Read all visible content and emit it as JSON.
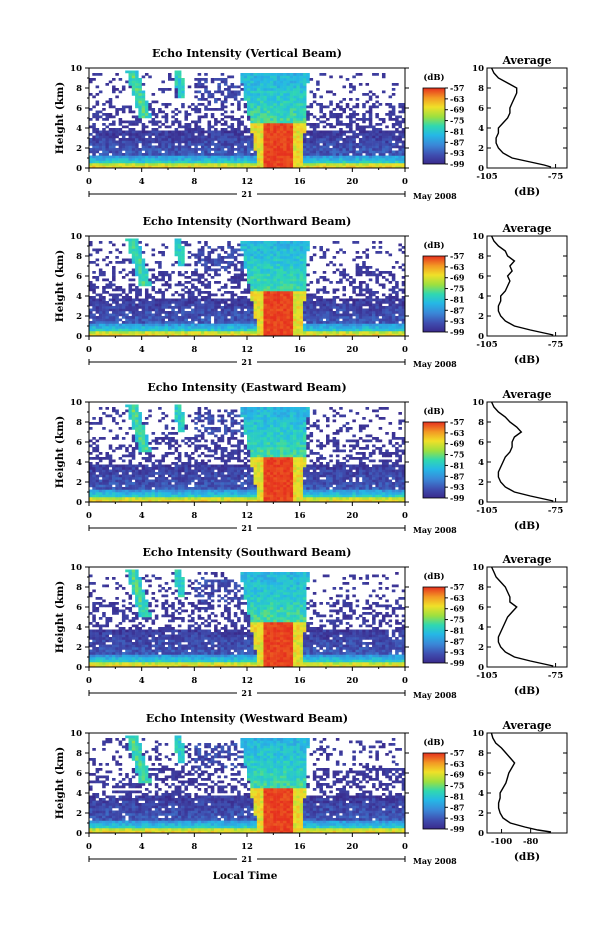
{
  "figure": {
    "xlabel": "Local Time",
    "day_label": "21",
    "month_label": "May 2008",
    "colorbar_unit": "(dB)",
    "avg_title": "Average",
    "avg_xlabel": "(dB)"
  },
  "chart_data": [
    {
      "type": "heatmap",
      "title": "Echo Intensity (Vertical Beam)",
      "ylabel": "Height (km)",
      "xlabel": "Local Time",
      "x_ticks": [
        "0",
        "4",
        "8",
        "12",
        "16",
        "20",
        "0"
      ],
      "xlim": [
        0,
        24
      ],
      "y_ticks": [
        "0",
        "2",
        "4",
        "6",
        "8",
        "10"
      ],
      "ylim": [
        0,
        10
      ],
      "colorbar": {
        "label": "(dB)",
        "ticks": [
          "-57",
          "-63",
          "-69",
          "-75",
          "-81",
          "-87",
          "-93",
          "-99"
        ],
        "range": [
          -99,
          -57
        ]
      },
      "average_profile": {
        "title": "Average",
        "xlabel": "(dB)",
        "xlim": [
          -105,
          -70
        ],
        "x_ticks": [
          "-105",
          "-75"
        ],
        "height_km": [
          0.1,
          0.3,
          0.6,
          1.0,
          1.5,
          2.0,
          2.5,
          3.0,
          3.5,
          4.0,
          4.5,
          5.0,
          5.5,
          6.0,
          6.5,
          7.0,
          7.5,
          8.0,
          8.5,
          9.0,
          9.5,
          10.0
        ],
        "db": [
          -77,
          -80,
          -86,
          -94,
          -98,
          -100,
          -101,
          -101,
          -100,
          -100,
          -98,
          -96,
          -95,
          -95,
          -94,
          -93,
          -92,
          -92,
          -96,
          -100,
          -102,
          -103
        ]
      }
    },
    {
      "type": "heatmap",
      "title": "Echo Intensity (Northward Beam)",
      "ylabel": "Height (km)",
      "xlabel": "Local Time",
      "x_ticks": [
        "0",
        "4",
        "8",
        "12",
        "16",
        "20",
        "0"
      ],
      "xlim": [
        0,
        24
      ],
      "y_ticks": [
        "0",
        "2",
        "4",
        "6",
        "8",
        "10"
      ],
      "ylim": [
        0,
        10
      ],
      "colorbar": {
        "label": "(dB)",
        "ticks": [
          "-57",
          "-63",
          "-69",
          "-75",
          "-81",
          "-87",
          "-93",
          "-99"
        ],
        "range": [
          -99,
          -57
        ]
      },
      "average_profile": {
        "title": "Average",
        "xlabel": "(dB)",
        "xlim": [
          -105,
          -70
        ],
        "x_ticks": [
          "-105",
          "-75"
        ],
        "height_km": [
          0.1,
          0.3,
          0.6,
          1.0,
          1.5,
          2.0,
          2.5,
          3.0,
          3.5,
          4.0,
          4.5,
          5.0,
          5.5,
          6.0,
          6.5,
          7.0,
          7.5,
          8.0,
          8.5,
          9.0,
          9.5,
          10.0
        ],
        "db": [
          -76,
          -80,
          -86,
          -93,
          -97,
          -99,
          -100,
          -100,
          -99,
          -99,
          -97,
          -96,
          -95,
          -96,
          -94,
          -95,
          -93,
          -96,
          -97,
          -100,
          -102,
          -103
        ]
      }
    },
    {
      "type": "heatmap",
      "title": "Echo Intensity (Eastward Beam)",
      "ylabel": "Height (km)",
      "xlabel": "Local Time",
      "x_ticks": [
        "0",
        "4",
        "8",
        "12",
        "16",
        "20",
        "0"
      ],
      "xlim": [
        0,
        24
      ],
      "y_ticks": [
        "0",
        "2",
        "4",
        "6",
        "8",
        "10"
      ],
      "ylim": [
        0,
        10
      ],
      "colorbar": {
        "label": "(dB)",
        "ticks": [
          "-57",
          "-63",
          "-69",
          "-75",
          "-81",
          "-87",
          "-93",
          "-99"
        ],
        "range": [
          -99,
          -57
        ]
      },
      "average_profile": {
        "title": "Average",
        "xlabel": "(dB)",
        "xlim": [
          -105,
          -70
        ],
        "x_ticks": [
          "-105",
          "-75"
        ],
        "height_km": [
          0.1,
          0.3,
          0.6,
          1.0,
          1.5,
          2.0,
          2.5,
          3.0,
          3.5,
          4.0,
          4.5,
          5.0,
          5.5,
          6.0,
          6.5,
          7.0,
          7.5,
          8.0,
          8.5,
          9.0,
          9.5,
          10.0
        ],
        "db": [
          -76,
          -80,
          -86,
          -93,
          -97,
          -99,
          -100,
          -100,
          -99,
          -98,
          -97,
          -95,
          -94,
          -94,
          -93,
          -90,
          -92,
          -95,
          -97,
          -100,
          -102,
          -103
        ]
      }
    },
    {
      "type": "heatmap",
      "title": "Echo Intensity (Southward Beam)",
      "ylabel": "Height (km)",
      "xlabel": "Local Time",
      "x_ticks": [
        "0",
        "4",
        "8",
        "12",
        "16",
        "20",
        "0"
      ],
      "xlim": [
        0,
        24
      ],
      "y_ticks": [
        "0",
        "2",
        "4",
        "6",
        "8",
        "10"
      ],
      "ylim": [
        0,
        10
      ],
      "colorbar": {
        "label": "(dB)",
        "ticks": [
          "-57",
          "-63",
          "-69",
          "-75",
          "-81",
          "-87",
          "-93",
          "-99"
        ],
        "range": [
          -99,
          -57
        ]
      },
      "average_profile": {
        "title": "Average",
        "xlabel": "(dB)",
        "xlim": [
          -105,
          -70
        ],
        "x_ticks": [
          "-105",
          "-75"
        ],
        "height_km": [
          0.1,
          0.3,
          0.6,
          1.0,
          1.5,
          2.0,
          2.5,
          3.0,
          3.5,
          4.0,
          4.5,
          5.0,
          5.5,
          6.0,
          6.5,
          7.0,
          7.5,
          8.0,
          8.5,
          9.0,
          9.5,
          10.0
        ],
        "db": [
          -76,
          -80,
          -86,
          -93,
          -97,
          -99,
          -100,
          -100,
          -99,
          -98,
          -97,
          -96,
          -94,
          -92,
          -95,
          -95,
          -96,
          -97,
          -99,
          -101,
          -102,
          -103
        ]
      }
    },
    {
      "type": "heatmap",
      "title": "Echo Intensity (Westward Beam)",
      "ylabel": "Height (km)",
      "xlabel": "Local Time",
      "x_ticks": [
        "0",
        "4",
        "8",
        "12",
        "16",
        "20",
        "0"
      ],
      "xlim": [
        0,
        24
      ],
      "y_ticks": [
        "0",
        "2",
        "4",
        "6",
        "8",
        "10"
      ],
      "ylim": [
        0,
        10
      ],
      "colorbar": {
        "label": "(dB)",
        "ticks": [
          "-57",
          "-63",
          "-69",
          "-75",
          "-81",
          "-87",
          "-93",
          "-99"
        ],
        "range": [
          -99,
          -57
        ]
      },
      "average_profile": {
        "title": "Average",
        "xlabel": "(dB)",
        "xlim": [
          -110,
          -55
        ],
        "x_ticks": [
          "-100",
          "-80"
        ],
        "height_km": [
          0.1,
          0.3,
          0.6,
          1.0,
          1.5,
          2.0,
          2.5,
          3.0,
          3.5,
          4.0,
          4.5,
          5.0,
          5.5,
          6.0,
          6.5,
          7.0,
          7.5,
          8.0,
          8.5,
          9.0,
          9.5,
          10.0
        ],
        "db": [
          -66,
          -75,
          -84,
          -94,
          -99,
          -101,
          -102,
          -102,
          -101,
          -101,
          -99,
          -97,
          -96,
          -95,
          -93,
          -91,
          -94,
          -97,
          -100,
          -104,
          -106,
          -107
        ]
      }
    }
  ]
}
